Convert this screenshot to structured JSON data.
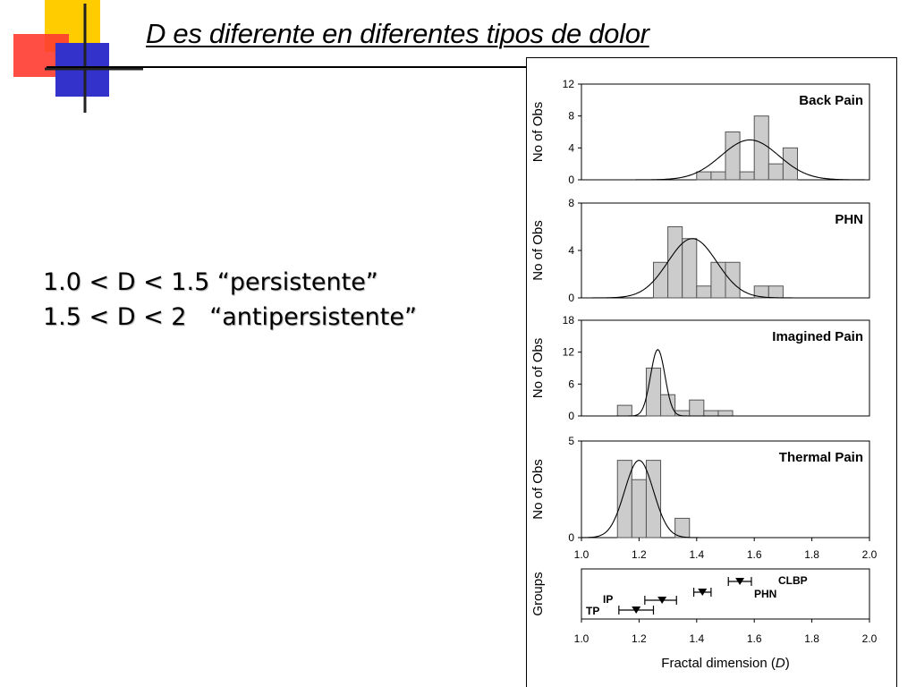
{
  "slide": {
    "title": "D es diferente en diferentes tipos de dolor",
    "lines": [
      "1.0 < D < 1.5 “persistente”",
      "1.5 < D < 2   “antipersistente”"
    ]
  },
  "colors": {
    "bar_fill": "#cccccc",
    "bar_stroke": "#555555",
    "deco_yellow": "#ffcc00",
    "deco_red": "#ff3b30",
    "deco_blue": "#3333cc"
  },
  "chart_data": [
    {
      "type": "bar",
      "title": "Back Pain",
      "ylabel": "No of Obs",
      "xlim": [
        1.0,
        2.0
      ],
      "ylim": [
        0,
        12
      ],
      "yticks": [
        0,
        4,
        8,
        12
      ],
      "bin_width": 0.05,
      "bins": [
        {
          "x": 1.4,
          "count": 1
        },
        {
          "x": 1.45,
          "count": 1
        },
        {
          "x": 1.5,
          "count": 6
        },
        {
          "x": 1.55,
          "count": 1
        },
        {
          "x": 1.6,
          "count": 8
        },
        {
          "x": 1.65,
          "count": 2
        },
        {
          "x": 1.7,
          "count": 4
        }
      ],
      "normal_fit": {
        "mean": 1.585,
        "sd": 0.1,
        "peak": 5
      }
    },
    {
      "type": "bar",
      "title": "PHN",
      "ylabel": "No of Obs",
      "xlim": [
        1.0,
        2.0
      ],
      "ylim": [
        0,
        8
      ],
      "yticks": [
        0,
        4,
        8
      ],
      "bin_width": 0.05,
      "bins": [
        {
          "x": 1.25,
          "count": 3
        },
        {
          "x": 1.3,
          "count": 6
        },
        {
          "x": 1.35,
          "count": 5
        },
        {
          "x": 1.4,
          "count": 1
        },
        {
          "x": 1.45,
          "count": 3
        },
        {
          "x": 1.5,
          "count": 3
        },
        {
          "x": 1.6,
          "count": 1
        },
        {
          "x": 1.65,
          "count": 1
        }
      ],
      "normal_fit": {
        "mean": 1.385,
        "sd": 0.085,
        "peak": 5
      }
    },
    {
      "type": "bar",
      "title": "Imagined Pain",
      "ylabel": "No of Obs",
      "xlim": [
        1.0,
        2.0
      ],
      "ylim": [
        0,
        18
      ],
      "yticks": [
        0,
        6,
        12,
        18
      ],
      "bin_width": 0.05,
      "bins": [
        {
          "x": 1.125,
          "count": 2
        },
        {
          "x": 1.225,
          "count": 9
        },
        {
          "x": 1.275,
          "count": 4
        },
        {
          "x": 1.325,
          "count": 1
        },
        {
          "x": 1.375,
          "count": 3
        },
        {
          "x": 1.425,
          "count": 1
        },
        {
          "x": 1.475,
          "count": 1
        }
      ],
      "normal_fit": {
        "mean": 1.265,
        "sd": 0.025,
        "peak": 12.5
      }
    },
    {
      "type": "bar",
      "title": "Thermal Pain",
      "ylabel": "No of Obs",
      "xlim": [
        1.0,
        2.0
      ],
      "ylim": [
        0,
        5
      ],
      "yticks": [
        0,
        5
      ],
      "bin_width": 0.05,
      "bins": [
        {
          "x": 1.125,
          "count": 4
        },
        {
          "x": 1.175,
          "count": 3
        },
        {
          "x": 1.225,
          "count": 4
        },
        {
          "x": 1.325,
          "count": 1
        }
      ],
      "normal_fit": {
        "mean": 1.2,
        "sd": 0.05,
        "peak": 4
      },
      "xticks": [
        "1.0",
        "1.2",
        "1.4",
        "1.6",
        "1.8",
        "2.0"
      ]
    },
    {
      "type": "scatter",
      "ylabel": "Groups",
      "xlabel": "Fractal dimension (D)",
      "xlim": [
        1.0,
        2.0
      ],
      "xticks": [
        "1.0",
        "1.2",
        "1.4",
        "1.6",
        "1.8",
        "2.0"
      ],
      "groups": [
        {
          "name": "CLBP",
          "mean": 1.55,
          "low": 1.51,
          "high": 1.59
        },
        {
          "name": "PHN",
          "mean": 1.42,
          "low": 1.39,
          "high": 1.45
        },
        {
          "name": "IP",
          "mean": 1.28,
          "low": 1.22,
          "high": 1.33
        },
        {
          "name": "TP",
          "mean": 1.19,
          "low": 1.13,
          "high": 1.25
        }
      ]
    }
  ]
}
